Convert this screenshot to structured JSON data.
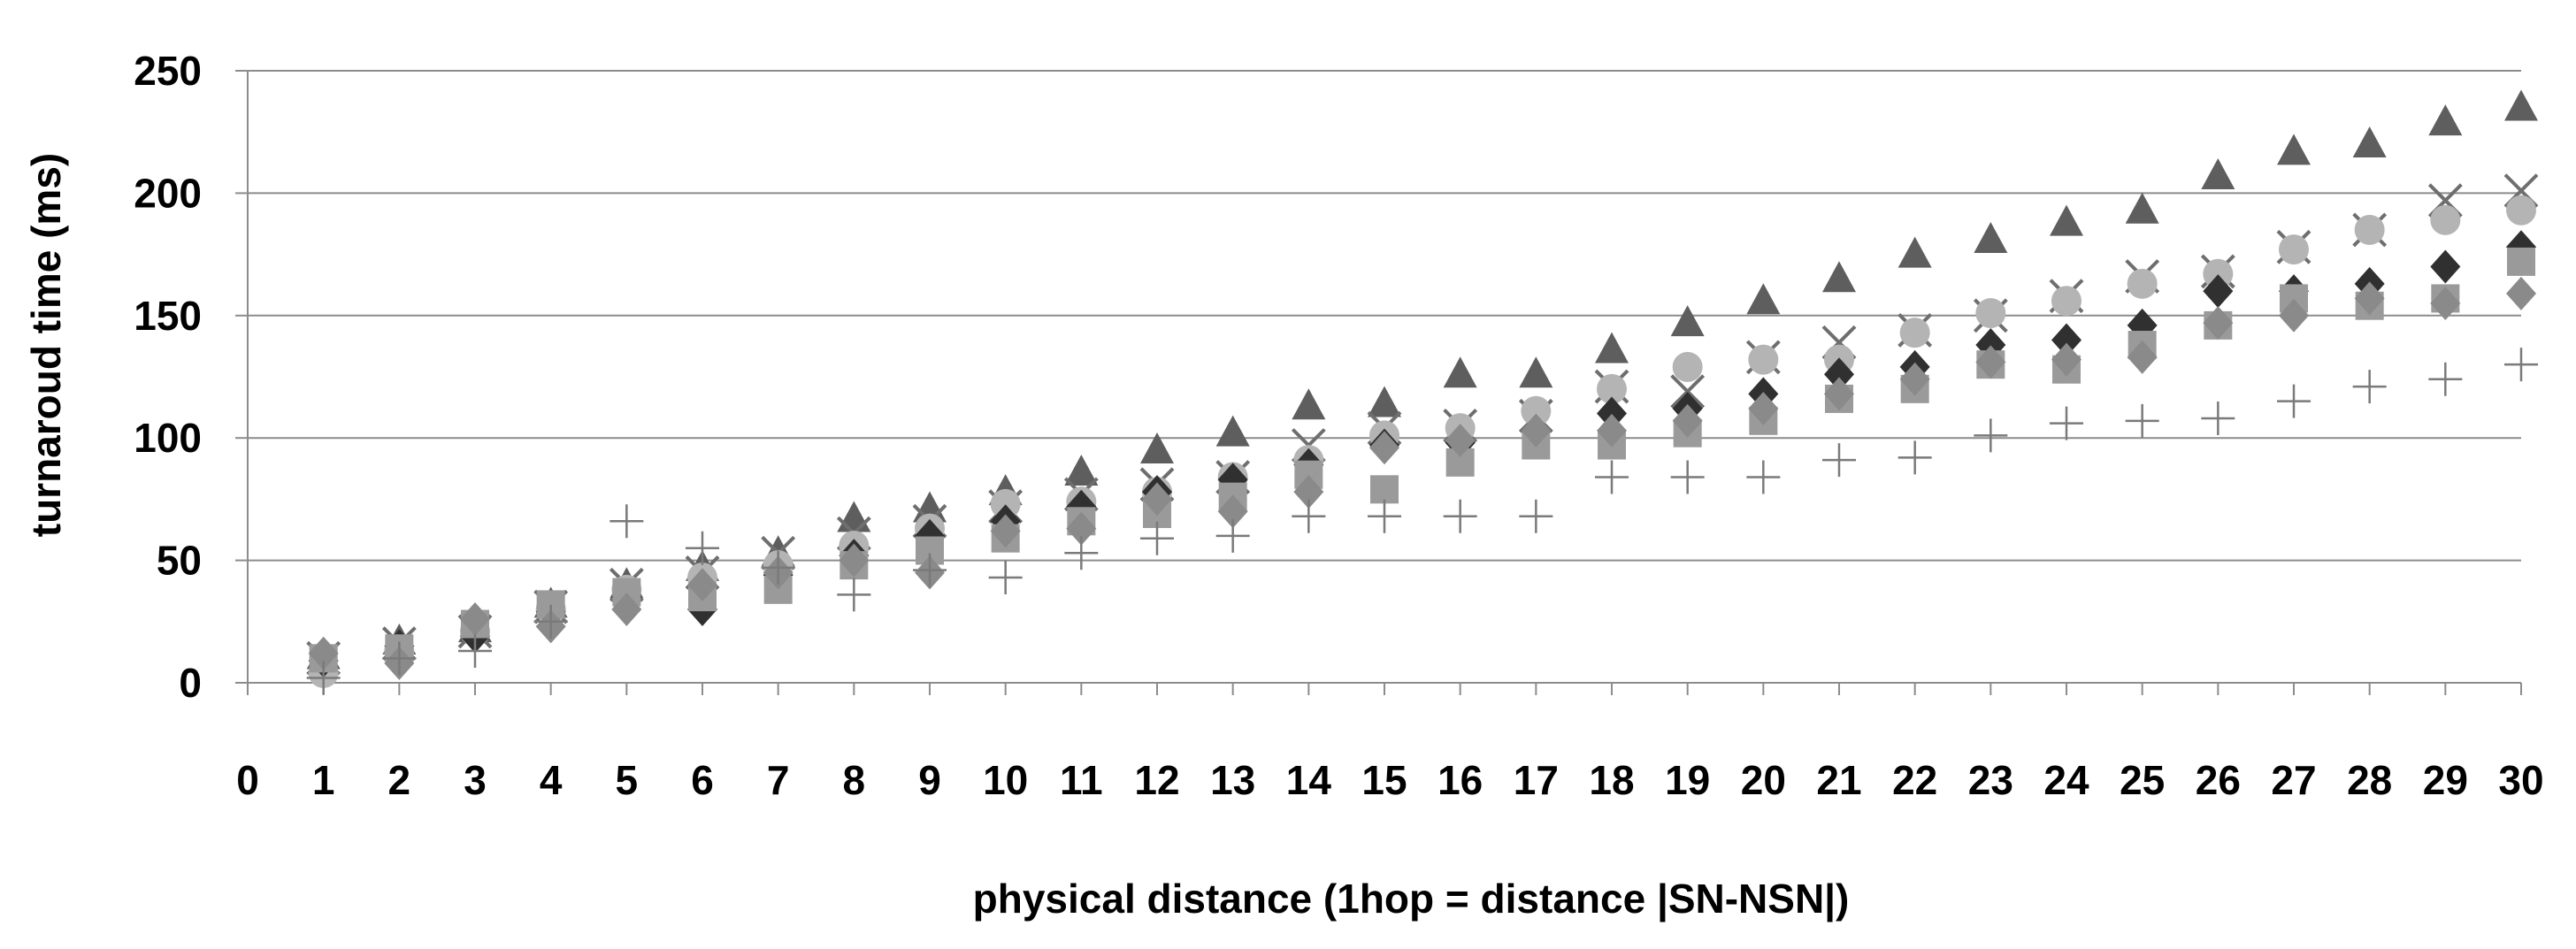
{
  "chart_data": {
    "type": "scatter",
    "title": "",
    "xlabel": "physical distance (1hop = distance |SN-NSN|)",
    "ylabel": "turnaroud time (ms)",
    "xlim": [
      0,
      30
    ],
    "ylim": [
      0,
      250
    ],
    "x_ticks": [
      "0",
      "1",
      "2",
      "3",
      "4",
      "5",
      "6",
      "7",
      "8",
      "9",
      "10",
      "11",
      "12",
      "13",
      "14",
      "15",
      "16",
      "17",
      "18",
      "19",
      "20",
      "21",
      "22",
      "23",
      "24",
      "25",
      "26",
      "27",
      "28",
      "29",
      "30"
    ],
    "y_ticks": [
      "0",
      "50",
      "100",
      "150",
      "200",
      "250"
    ],
    "grid": true,
    "legend": "none",
    "x": [
      1,
      2,
      3,
      4,
      5,
      6,
      7,
      8,
      9,
      10,
      11,
      12,
      13,
      14,
      15,
      16,
      17,
      18,
      19,
      20,
      21,
      22,
      23,
      24,
      25,
      26,
      27,
      28,
      29,
      30
    ],
    "series": [
      {
        "marker": "triangle",
        "color": "#5e5e5e",
        "values": [
          11,
          17,
          22,
          32,
          40,
          47,
          53,
          67,
          71,
          78,
          86,
          95,
          102,
          113,
          114,
          126,
          126,
          136,
          147,
          156,
          165,
          175,
          181,
          188,
          193,
          207,
          217,
          220,
          229,
          235
        ]
      },
      {
        "marker": "x",
        "color": "#6e6e6e",
        "values": [
          10,
          16,
          21,
          31,
          40,
          45,
          53,
          61,
          66,
          72,
          77,
          81,
          84,
          97,
          104,
          105,
          109,
          121,
          119,
          133,
          139,
          144,
          150,
          158,
          166,
          168,
          178,
          185,
          197,
          201
        ]
      },
      {
        "marker": "circle",
        "color": "#b4b4b4",
        "values": [
          4,
          13,
          21,
          30,
          38,
          43,
          48,
          56,
          63,
          73,
          74,
          78,
          84,
          91,
          101,
          104,
          111,
          120,
          129,
          132,
          132,
          143,
          151,
          156,
          163,
          167,
          177,
          185,
          189,
          193
        ]
      },
      {
        "marker": "diamond",
        "color": "#303030",
        "values": [
          9,
          15,
          19,
          29,
          35,
          30,
          44,
          52,
          60,
          66,
          72,
          78,
          83,
          89,
          97,
          98,
          103,
          110,
          112,
          118,
          126,
          129,
          138,
          140,
          146,
          160,
          160,
          163,
          170,
          178
        ]
      },
      {
        "marker": "square",
        "color": "#9a9a9a",
        "values": [
          10,
          14,
          24,
          32,
          37,
          35,
          38,
          48,
          54,
          59,
          66,
          69,
          76,
          85,
          79,
          90,
          97,
          97,
          102,
          107,
          116,
          120,
          130,
          128,
          138,
          146,
          157,
          154,
          157,
          172
        ]
      },
      {
        "marker": "diamond",
        "color": "#8a8a8a",
        "values": [
          12,
          8,
          26,
          23,
          30,
          40,
          45,
          50,
          45,
          62,
          63,
          75,
          70,
          78,
          96,
          99,
          103,
          103,
          107,
          112,
          118,
          124,
          131,
          132,
          133,
          147,
          150,
          157,
          155,
          159
        ]
      },
      {
        "marker": "plus",
        "color": "#7a7a7a",
        "values": [
          2,
          10,
          13,
          25,
          66,
          55,
          47,
          36,
          46,
          43,
          53,
          59,
          60,
          68,
          68,
          68,
          68,
          84,
          84,
          84,
          91,
          92,
          101,
          106,
          107,
          108,
          115,
          121,
          124,
          130
        ]
      }
    ]
  }
}
